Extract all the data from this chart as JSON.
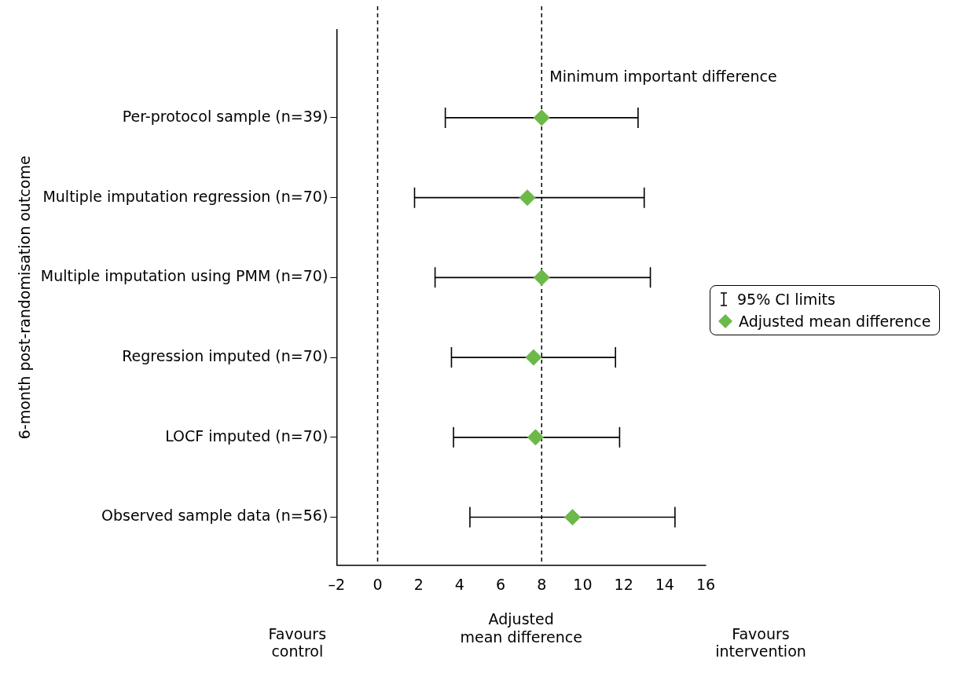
{
  "chart_data": {
    "type": "scatter",
    "orientation": "horizontal",
    "ylabel": "6-month post-randomisation outcome",
    "xlabel": "Adjusted\nmean difference",
    "categories": [
      "Per-protocol sample (n=39)",
      "Multiple imputation regression (n=70)",
      "Multiple imputation using PMM (n=70)",
      "Regression imputed (n=70)",
      "LOCF imputed (n=70)",
      "Observed sample data (n=56)"
    ],
    "series": [
      {
        "name": "Adjusted mean difference",
        "color": "#6cb94a",
        "values": [
          8.0,
          7.3,
          8.0,
          7.6,
          7.7,
          9.5
        ],
        "errors": [
          [
            3.3,
            12.7
          ],
          [
            1.8,
            13.0
          ],
          [
            2.8,
            13.3
          ],
          [
            3.6,
            11.6
          ],
          [
            3.7,
            11.8
          ],
          [
            4.5,
            14.5
          ]
        ]
      }
    ],
    "marker": "diamond",
    "xlim": [
      -2,
      16
    ],
    "xticks": [
      {
        "value": -2,
        "label": "–2"
      },
      0,
      2,
      4,
      6,
      8,
      10,
      12,
      14,
      16
    ],
    "ref_lines": [
      {
        "axis": "x",
        "value": 0,
        "line_style": "dashed"
      },
      {
        "axis": "x",
        "value": 8,
        "label": "Minimum important difference",
        "line_style": "dashed"
      }
    ],
    "annotations": [
      "Favours control",
      "95% CI limits",
      "Favours intervention"
    ],
    "legend": "right",
    "grid": false
  }
}
